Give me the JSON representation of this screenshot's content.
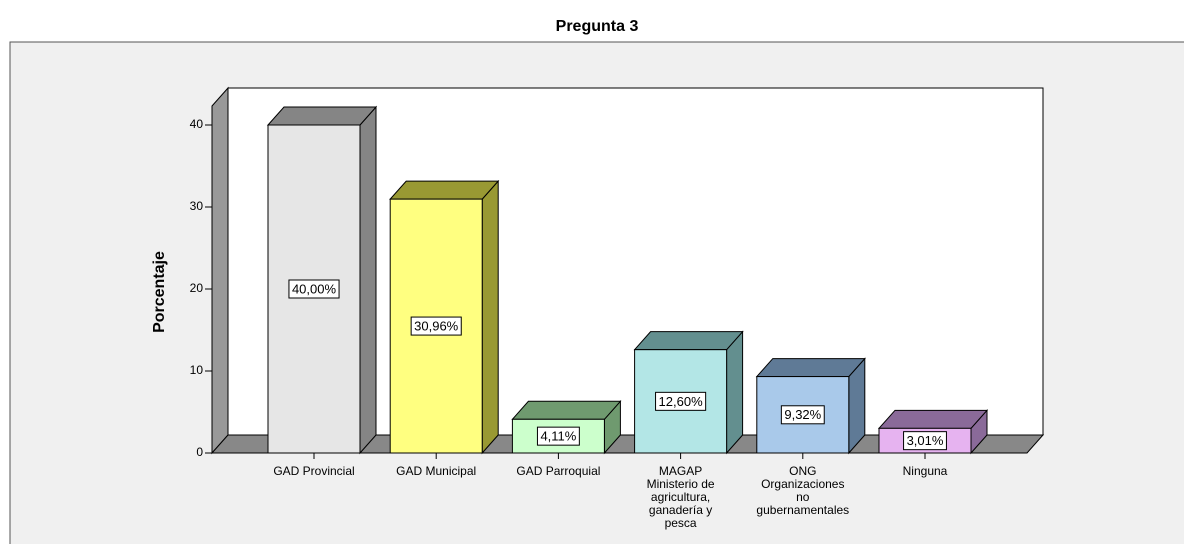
{
  "chart_data": {
    "type": "bar3d",
    "title": "Pregunta 3",
    "y_label": "Porcentaje",
    "categories": [
      "GAD Provincial",
      "GAD Municipal",
      "GAD Parroquial",
      "MAGAP\nMinisterio de\nagricultura,\nganadería y\npesca",
      "ONG\nOrganizaciones\nno\ngubernamentales",
      "Ninguna"
    ],
    "values": [
      40,
      30.96,
      4.11,
      12.6,
      9.32,
      3.01
    ],
    "value_labels": [
      "40,00%",
      "30,96%",
      "4,11%",
      "12,60%",
      "9,32%",
      "3,01%"
    ],
    "colors": [
      "#e6e6e6",
      "#ffff80",
      "#ccffcc",
      "#b3e6e6",
      "#a9c9ea",
      "#e6b3f0"
    ],
    "side_colors": [
      "#858585",
      "#999933",
      "#6f9a6f",
      "#638f8f",
      "#5f7a96",
      "#8a6a99"
    ],
    "ylim": [
      0,
      40
    ],
    "yticks": [
      0,
      10,
      20,
      30,
      40
    ]
  }
}
